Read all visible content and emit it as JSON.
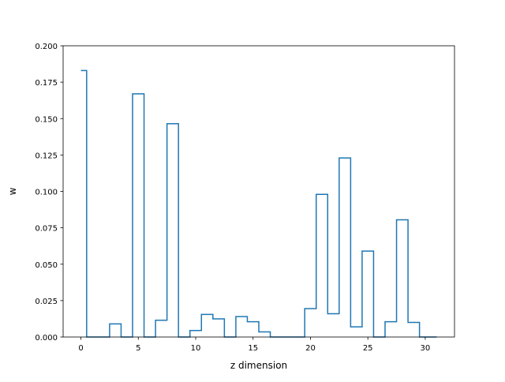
{
  "chart_data": {
    "type": "step",
    "xlabel": "z dimension",
    "ylabel": "w",
    "xlim": [
      -1.55,
      32.55
    ],
    "ylim": [
      0,
      0.2
    ],
    "xticks": [
      0,
      5,
      10,
      15,
      20,
      25,
      30
    ],
    "yticks": [
      "0.000",
      "0.025",
      "0.050",
      "0.075",
      "0.100",
      "0.125",
      "0.150",
      "0.175",
      "0.200"
    ],
    "ytick_values": [
      0,
      0.025,
      0.05,
      0.075,
      0.1,
      0.125,
      0.15,
      0.175,
      0.2
    ],
    "line_color": "#1f77b4",
    "grid": false,
    "legend": "none",
    "series": [
      {
        "x": [
          0,
          1,
          2,
          3,
          4,
          5,
          6,
          7,
          8,
          9,
          10,
          11,
          12,
          13,
          14,
          15,
          16,
          17,
          18,
          19,
          20,
          21,
          22,
          23,
          24,
          25,
          26,
          27,
          28,
          29,
          30
        ],
        "values": [
          0.183,
          0.0,
          0.0,
          0.009,
          0.0,
          0.167,
          0.0,
          0.0115,
          0.1465,
          0.0,
          0.0045,
          0.0155,
          0.0125,
          0.0,
          0.014,
          0.0105,
          0.0035,
          0.0,
          0.0,
          0.0,
          0.0195,
          0.098,
          0.016,
          0.123,
          0.007,
          0.059,
          0.0,
          0.0105,
          0.0805,
          0.01,
          0.0
        ]
      }
    ]
  }
}
